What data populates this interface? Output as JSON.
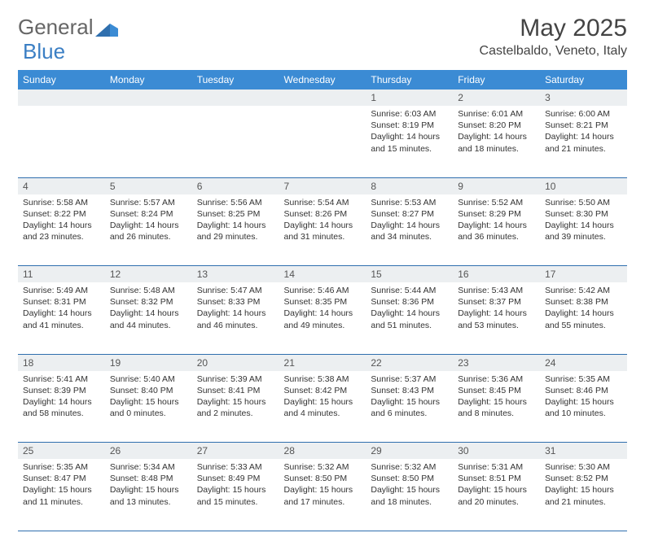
{
  "brand": {
    "part1": "General",
    "part2": "Blue"
  },
  "title": "May 2025",
  "location": "Castelbaldo, Veneto, Italy",
  "colors": {
    "header_bg": "#3b8bd4",
    "header_text": "#ffffff",
    "daynum_bg": "#eceff1",
    "border": "#2f6fae",
    "text": "#333333",
    "title_text": "#444444"
  },
  "dayNames": [
    "Sunday",
    "Monday",
    "Tuesday",
    "Wednesday",
    "Thursday",
    "Friday",
    "Saturday"
  ],
  "weeks": [
    [
      null,
      null,
      null,
      null,
      {
        "n": "1",
        "sr": "Sunrise: 6:03 AM",
        "ss": "Sunset: 8:19 PM",
        "dl": "Daylight: 14 hours and 15 minutes."
      },
      {
        "n": "2",
        "sr": "Sunrise: 6:01 AM",
        "ss": "Sunset: 8:20 PM",
        "dl": "Daylight: 14 hours and 18 minutes."
      },
      {
        "n": "3",
        "sr": "Sunrise: 6:00 AM",
        "ss": "Sunset: 8:21 PM",
        "dl": "Daylight: 14 hours and 21 minutes."
      }
    ],
    [
      {
        "n": "4",
        "sr": "Sunrise: 5:58 AM",
        "ss": "Sunset: 8:22 PM",
        "dl": "Daylight: 14 hours and 23 minutes."
      },
      {
        "n": "5",
        "sr": "Sunrise: 5:57 AM",
        "ss": "Sunset: 8:24 PM",
        "dl": "Daylight: 14 hours and 26 minutes."
      },
      {
        "n": "6",
        "sr": "Sunrise: 5:56 AM",
        "ss": "Sunset: 8:25 PM",
        "dl": "Daylight: 14 hours and 29 minutes."
      },
      {
        "n": "7",
        "sr": "Sunrise: 5:54 AM",
        "ss": "Sunset: 8:26 PM",
        "dl": "Daylight: 14 hours and 31 minutes."
      },
      {
        "n": "8",
        "sr": "Sunrise: 5:53 AM",
        "ss": "Sunset: 8:27 PM",
        "dl": "Daylight: 14 hours and 34 minutes."
      },
      {
        "n": "9",
        "sr": "Sunrise: 5:52 AM",
        "ss": "Sunset: 8:29 PM",
        "dl": "Daylight: 14 hours and 36 minutes."
      },
      {
        "n": "10",
        "sr": "Sunrise: 5:50 AM",
        "ss": "Sunset: 8:30 PM",
        "dl": "Daylight: 14 hours and 39 minutes."
      }
    ],
    [
      {
        "n": "11",
        "sr": "Sunrise: 5:49 AM",
        "ss": "Sunset: 8:31 PM",
        "dl": "Daylight: 14 hours and 41 minutes."
      },
      {
        "n": "12",
        "sr": "Sunrise: 5:48 AM",
        "ss": "Sunset: 8:32 PM",
        "dl": "Daylight: 14 hours and 44 minutes."
      },
      {
        "n": "13",
        "sr": "Sunrise: 5:47 AM",
        "ss": "Sunset: 8:33 PM",
        "dl": "Daylight: 14 hours and 46 minutes."
      },
      {
        "n": "14",
        "sr": "Sunrise: 5:46 AM",
        "ss": "Sunset: 8:35 PM",
        "dl": "Daylight: 14 hours and 49 minutes."
      },
      {
        "n": "15",
        "sr": "Sunrise: 5:44 AM",
        "ss": "Sunset: 8:36 PM",
        "dl": "Daylight: 14 hours and 51 minutes."
      },
      {
        "n": "16",
        "sr": "Sunrise: 5:43 AM",
        "ss": "Sunset: 8:37 PM",
        "dl": "Daylight: 14 hours and 53 minutes."
      },
      {
        "n": "17",
        "sr": "Sunrise: 5:42 AM",
        "ss": "Sunset: 8:38 PM",
        "dl": "Daylight: 14 hours and 55 minutes."
      }
    ],
    [
      {
        "n": "18",
        "sr": "Sunrise: 5:41 AM",
        "ss": "Sunset: 8:39 PM",
        "dl": "Daylight: 14 hours and 58 minutes."
      },
      {
        "n": "19",
        "sr": "Sunrise: 5:40 AM",
        "ss": "Sunset: 8:40 PM",
        "dl": "Daylight: 15 hours and 0 minutes."
      },
      {
        "n": "20",
        "sr": "Sunrise: 5:39 AM",
        "ss": "Sunset: 8:41 PM",
        "dl": "Daylight: 15 hours and 2 minutes."
      },
      {
        "n": "21",
        "sr": "Sunrise: 5:38 AM",
        "ss": "Sunset: 8:42 PM",
        "dl": "Daylight: 15 hours and 4 minutes."
      },
      {
        "n": "22",
        "sr": "Sunrise: 5:37 AM",
        "ss": "Sunset: 8:43 PM",
        "dl": "Daylight: 15 hours and 6 minutes."
      },
      {
        "n": "23",
        "sr": "Sunrise: 5:36 AM",
        "ss": "Sunset: 8:45 PM",
        "dl": "Daylight: 15 hours and 8 minutes."
      },
      {
        "n": "24",
        "sr": "Sunrise: 5:35 AM",
        "ss": "Sunset: 8:46 PM",
        "dl": "Daylight: 15 hours and 10 minutes."
      }
    ],
    [
      {
        "n": "25",
        "sr": "Sunrise: 5:35 AM",
        "ss": "Sunset: 8:47 PM",
        "dl": "Daylight: 15 hours and 11 minutes."
      },
      {
        "n": "26",
        "sr": "Sunrise: 5:34 AM",
        "ss": "Sunset: 8:48 PM",
        "dl": "Daylight: 15 hours and 13 minutes."
      },
      {
        "n": "27",
        "sr": "Sunrise: 5:33 AM",
        "ss": "Sunset: 8:49 PM",
        "dl": "Daylight: 15 hours and 15 minutes."
      },
      {
        "n": "28",
        "sr": "Sunrise: 5:32 AM",
        "ss": "Sunset: 8:50 PM",
        "dl": "Daylight: 15 hours and 17 minutes."
      },
      {
        "n": "29",
        "sr": "Sunrise: 5:32 AM",
        "ss": "Sunset: 8:50 PM",
        "dl": "Daylight: 15 hours and 18 minutes."
      },
      {
        "n": "30",
        "sr": "Sunrise: 5:31 AM",
        "ss": "Sunset: 8:51 PM",
        "dl": "Daylight: 15 hours and 20 minutes."
      },
      {
        "n": "31",
        "sr": "Sunrise: 5:30 AM",
        "ss": "Sunset: 8:52 PM",
        "dl": "Daylight: 15 hours and 21 minutes."
      }
    ]
  ]
}
